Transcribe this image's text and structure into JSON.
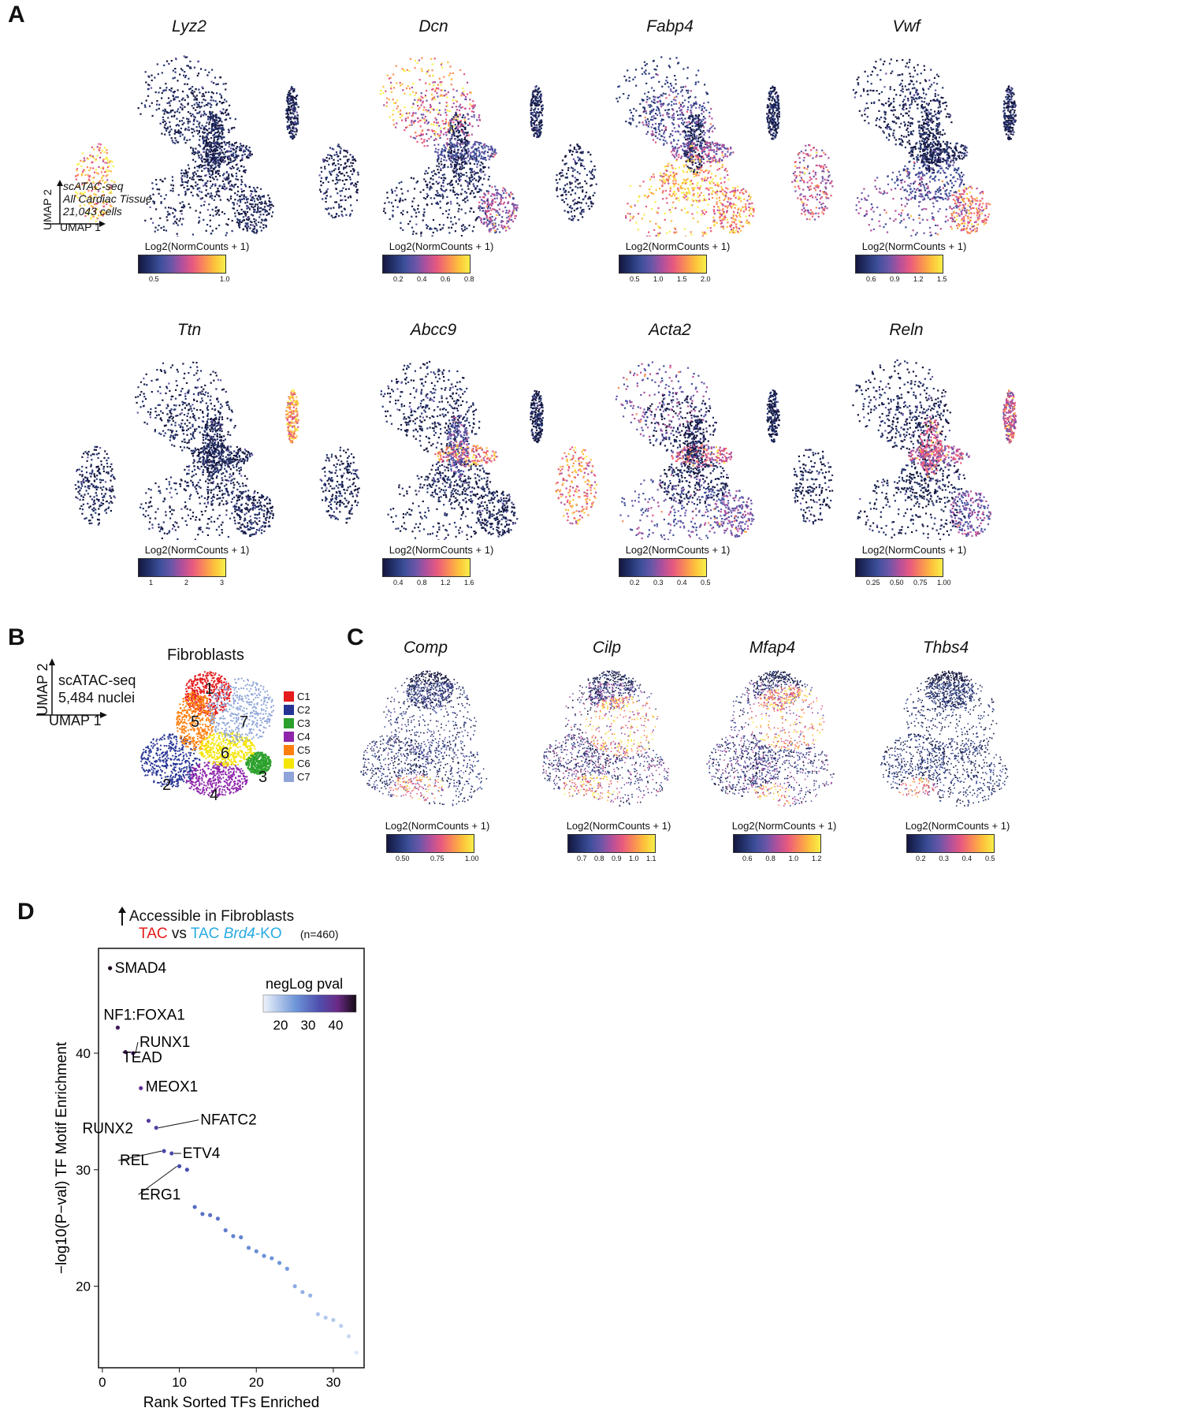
{
  "panels": {
    "A": "A",
    "B": "B",
    "C": "C",
    "D": "D"
  },
  "panelA": {
    "genes": [
      {
        "name": "Lyz2",
        "scale": "Log2(NormCounts + 1)",
        "ticks": [
          "0.5",
          "1.0"
        ]
      },
      {
        "name": "Dcn",
        "scale": "Log2(NormCounts + 1)",
        "ticks": [
          "0.2",
          "0.4",
          "0.6",
          "0.8"
        ]
      },
      {
        "name": "Fabp4",
        "scale": "Log2(NormCounts + 1)",
        "ticks": [
          "0.5",
          "1.0",
          "1.5",
          "2.0"
        ]
      },
      {
        "name": "Vwf",
        "scale": "Log2(NormCounts + 1)",
        "ticks": [
          "0.6",
          "0.9",
          "1.2",
          "1.5"
        ]
      },
      {
        "name": "Ttn",
        "scale": "Log2(NormCounts + 1)",
        "ticks": [
          "1",
          "2",
          "3"
        ]
      },
      {
        "name": "Abcc9",
        "scale": "Log2(NormCounts + 1)",
        "ticks": [
          "0.4",
          "0.8",
          "1.2",
          "1.6"
        ]
      },
      {
        "name": "Acta2",
        "scale": "Log2(NormCounts + 1)",
        "ticks": [
          "0.2",
          "0.3",
          "0.4",
          "0.5"
        ]
      },
      {
        "name": "Reln",
        "scale": "Log2(NormCounts + 1)",
        "ticks": [
          "0.25",
          "0.50",
          "0.75",
          "1.00"
        ]
      }
    ],
    "axis_note": {
      "umap1": "UMAP 1",
      "umap2": "UMAP 2",
      "line1": "scATAC-seq",
      "line2": "All Cardiac Tissue",
      "line3": "21,043 cells"
    }
  },
  "panelB": {
    "title": "Fibroblasts",
    "umap1": "UMAP 1",
    "umap2": "UMAP 2",
    "line1": "scATAC-seq",
    "line2": "5,484 nuclei",
    "clusters": [
      {
        "label": "C1",
        "num": "1",
        "color": "#e41a1c"
      },
      {
        "label": "C2",
        "num": "2",
        "color": "#253494"
      },
      {
        "label": "C3",
        "num": "3",
        "color": "#2ca02c"
      },
      {
        "label": "C4",
        "num": "4",
        "color": "#8e24aa"
      },
      {
        "label": "C5",
        "num": "5",
        "color": "#ff7f0e"
      },
      {
        "label": "C6",
        "num": "6",
        "color": "#f5e50a"
      },
      {
        "label": "C7",
        "num": "7",
        "color": "#8fa5d9"
      }
    ]
  },
  "panelC": {
    "genes": [
      {
        "name": "Comp",
        "scale": "Log2(NormCounts + 1)",
        "ticks": [
          "0.50",
          "0.75",
          "1.00"
        ]
      },
      {
        "name": "Cilp",
        "scale": "Log2(NormCounts + 1)",
        "ticks": [
          "0.7",
          "0.8",
          "0.9",
          "1.0",
          "1.1"
        ]
      },
      {
        "name": "Mfap4",
        "scale": "Log2(NormCounts + 1)",
        "ticks": [
          "0.6",
          "0.8",
          "1.0",
          "1.2"
        ]
      },
      {
        "name": "Thbs4",
        "scale": "Log2(NormCounts + 1)",
        "ticks": [
          "0.2",
          "0.3",
          "0.4",
          "0.5"
        ]
      }
    ]
  },
  "chart_data": {
    "type": "scatter",
    "title": "Accessible in Fibroblasts",
    "subtitle_parts": {
      "tac": "TAC",
      "vs": "vs",
      "tac2": "TAC",
      "brd4": "Brd4",
      "ko": "-KO",
      "n": "(n=460)"
    },
    "xlabel": "Rank Sorted TFs Enriched",
    "ylabel": "−log10(P−val) TF Motif Enrichment",
    "xlim": [
      -0.5,
      34
    ],
    "ylim": [
      13,
      49
    ],
    "xticks": [
      0,
      10,
      20,
      30
    ],
    "yticks": [
      20,
      30,
      40
    ],
    "legend": {
      "title": "negLog pval",
      "ticks": [
        "20",
        "30",
        "40"
      ],
      "placement": "top-right"
    },
    "points": [
      {
        "x": 1,
        "y": 47.3,
        "label": "SMAD4"
      },
      {
        "x": 2,
        "y": 42.2,
        "label": "NF1:FOXA1"
      },
      {
        "x": 3,
        "y": 40.1,
        "label": "TEAD"
      },
      {
        "x": 4,
        "y": 40.0,
        "label": "RUNX1"
      },
      {
        "x": 5,
        "y": 37.0,
        "label": "MEOX1"
      },
      {
        "x": 6,
        "y": 34.2,
        "label": "RUNX2"
      },
      {
        "x": 7,
        "y": 33.6,
        "label": "NFATC2"
      },
      {
        "x": 8,
        "y": 31.6,
        "label": "REL"
      },
      {
        "x": 9,
        "y": 31.4,
        "label": "ETV4"
      },
      {
        "x": 10,
        "y": 30.3,
        "label": "ERG1"
      },
      {
        "x": 11,
        "y": 30.0,
        "label": ""
      },
      {
        "x": 12,
        "y": 26.8,
        "label": ""
      },
      {
        "x": 13,
        "y": 26.2,
        "label": ""
      },
      {
        "x": 14,
        "y": 26.1,
        "label": ""
      },
      {
        "x": 15,
        "y": 25.8,
        "label": ""
      },
      {
        "x": 16,
        "y": 24.8,
        "label": ""
      },
      {
        "x": 17,
        "y": 24.3,
        "label": ""
      },
      {
        "x": 18,
        "y": 24.2,
        "label": ""
      },
      {
        "x": 19,
        "y": 23.3,
        "label": ""
      },
      {
        "x": 20,
        "y": 23.0,
        "label": ""
      },
      {
        "x": 21,
        "y": 22.6,
        "label": ""
      },
      {
        "x": 22,
        "y": 22.4,
        "label": ""
      },
      {
        "x": 23,
        "y": 22.0,
        "label": ""
      },
      {
        "x": 24,
        "y": 21.5,
        "label": ""
      },
      {
        "x": 25,
        "y": 20.0,
        "label": ""
      },
      {
        "x": 26,
        "y": 19.5,
        "label": ""
      },
      {
        "x": 27,
        "y": 19.2,
        "label": ""
      },
      {
        "x": 28,
        "y": 17.6,
        "label": ""
      },
      {
        "x": 29,
        "y": 17.3,
        "label": ""
      },
      {
        "x": 30,
        "y": 17.1,
        "label": ""
      },
      {
        "x": 31,
        "y": 16.6,
        "label": ""
      },
      {
        "x": 32,
        "y": 15.7,
        "label": ""
      },
      {
        "x": 33,
        "y": 14.3,
        "label": ""
      }
    ]
  }
}
